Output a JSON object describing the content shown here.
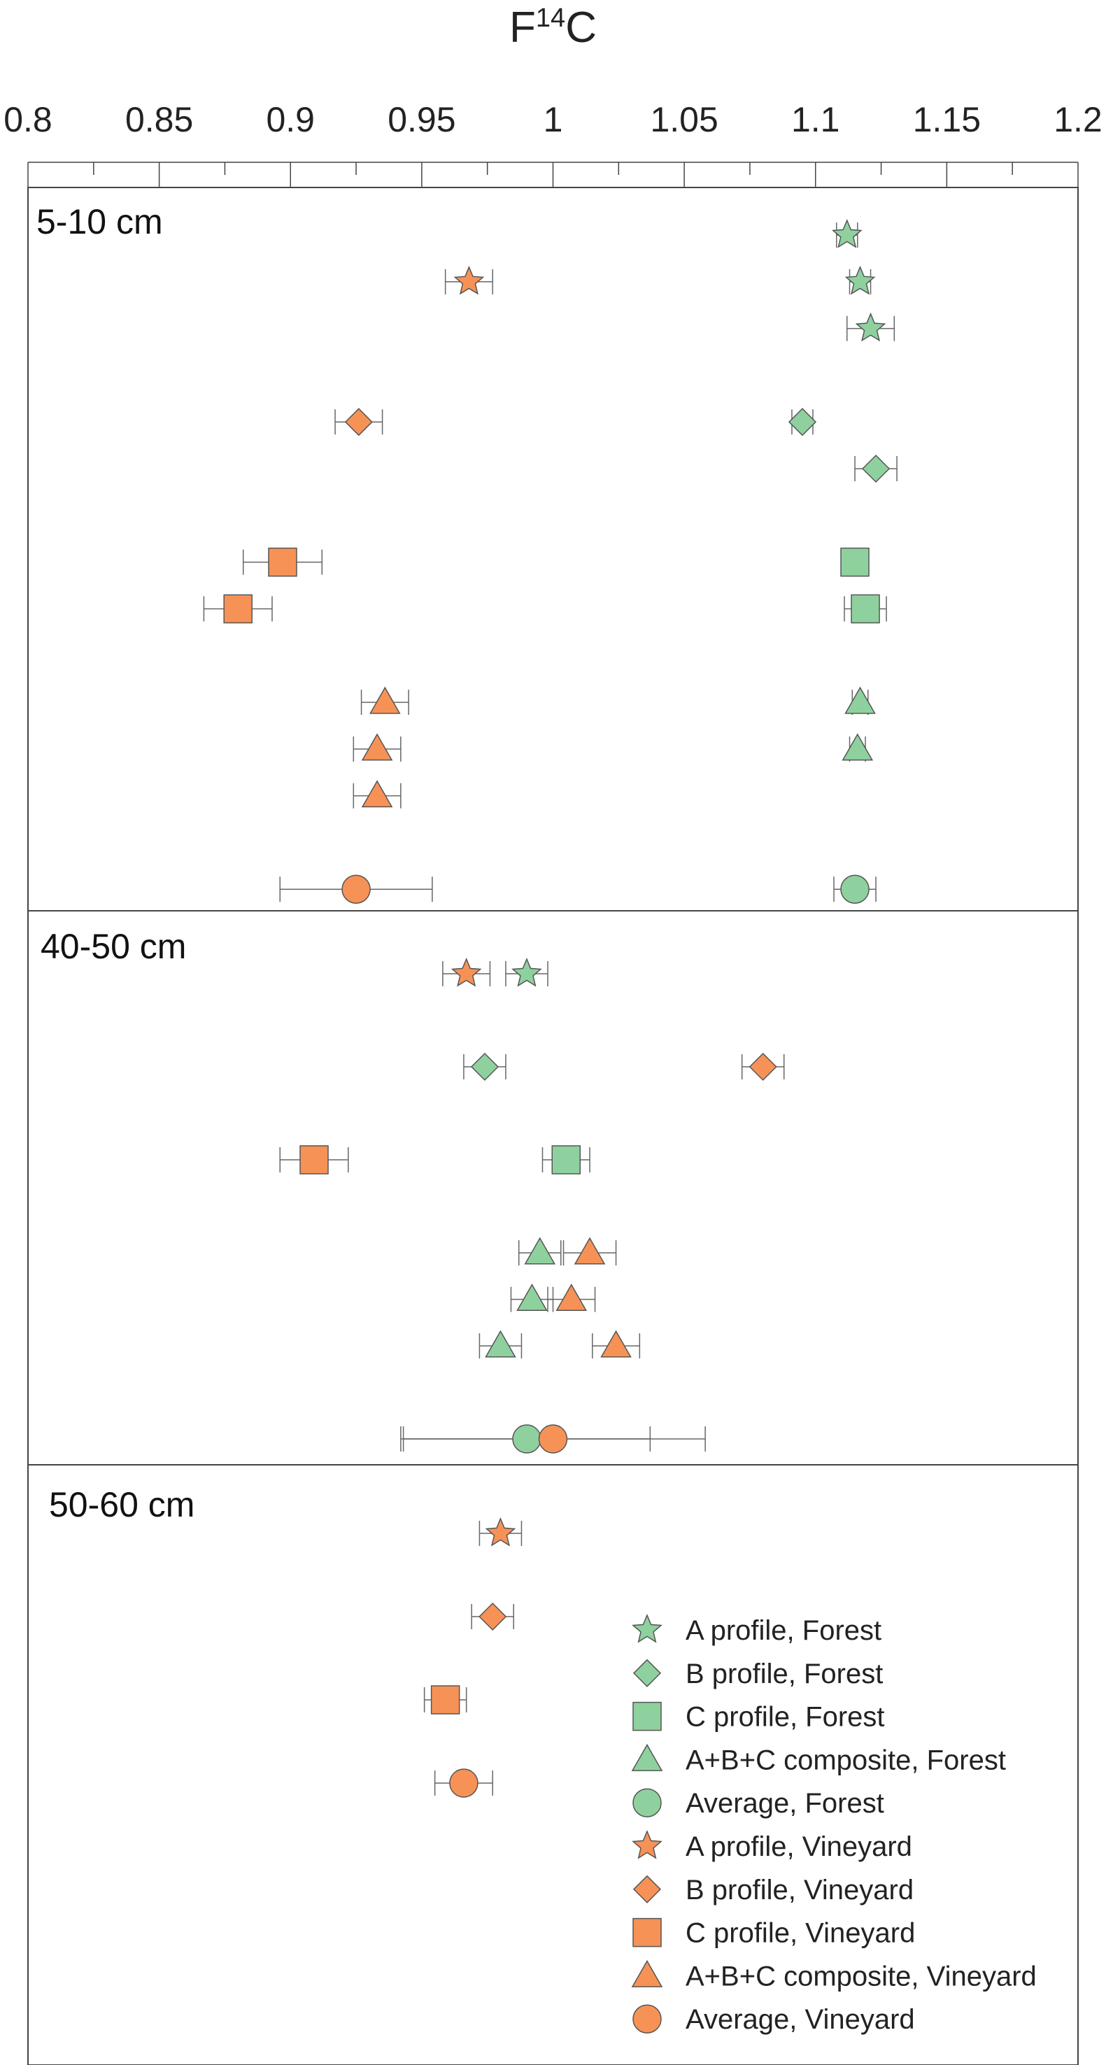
{
  "chart_data": {
    "type": "scatter",
    "title": "",
    "xlabel": "F",
    "xlabel_sup": "14",
    "xlabel_suffix": "C",
    "xlim": [
      0.8,
      1.2
    ],
    "xtick_values": [
      0.8,
      0.85,
      0.9,
      0.95,
      1,
      1.05,
      1.1,
      1.15,
      1.2
    ],
    "xtick_labels": [
      "0.8",
      "0.85",
      "0.9",
      "0.95",
      "1",
      "1.05",
      "1.1",
      "1.15",
      "1.2"
    ],
    "colors": {
      "forest": "#8fd19e",
      "vineyard": "#f79256",
      "stroke": "#555555",
      "axis": "#444444"
    },
    "legend": {
      "placement": "bottom-right of panel 50-60 cm",
      "entries": [
        {
          "label": "A profile, Forest",
          "shape": "star",
          "group": "forest"
        },
        {
          "label": "B profile, Forest",
          "shape": "diamond",
          "group": "forest"
        },
        {
          "label": "C profile, Forest",
          "shape": "square",
          "group": "forest"
        },
        {
          "label": "A+B+C composite, Forest",
          "shape": "triangle",
          "group": "forest"
        },
        {
          "label": "Average, Forest",
          "shape": "circle",
          "group": "forest"
        },
        {
          "label": "A profile, Vineyard",
          "shape": "star",
          "group": "vineyard"
        },
        {
          "label": "B profile, Vineyard",
          "shape": "diamond",
          "group": "vineyard"
        },
        {
          "label": "C profile, Vineyard",
          "shape": "square",
          "group": "vineyard"
        },
        {
          "label": "A+B+C composite, Vineyard",
          "shape": "triangle",
          "group": "vineyard"
        },
        {
          "label": "Average, Vineyard",
          "shape": "circle",
          "group": "vineyard"
        }
      ]
    },
    "panels": [
      {
        "label": "5-10 cm",
        "rows": 15,
        "points": [
          {
            "row": 1,
            "x": 1.112,
            "err": 0.004,
            "shape": "star",
            "group": "forest"
          },
          {
            "row": 2,
            "x": 0.968,
            "err": 0.009,
            "shape": "star",
            "group": "vineyard"
          },
          {
            "row": 2,
            "x": 1.117,
            "err": 0.004,
            "shape": "star",
            "group": "forest"
          },
          {
            "row": 3,
            "x": 1.121,
            "err": 0.009,
            "shape": "star",
            "group": "forest"
          },
          {
            "row": 5,
            "x": 0.926,
            "err": 0.009,
            "shape": "diamond",
            "group": "vineyard"
          },
          {
            "row": 5,
            "x": 1.095,
            "err": 0.004,
            "shape": "diamond",
            "group": "forest"
          },
          {
            "row": 6,
            "x": 1.123,
            "err": 0.008,
            "shape": "diamond",
            "group": "forest"
          },
          {
            "row": 8,
            "x": 0.897,
            "err": 0.015,
            "shape": "square",
            "group": "vineyard"
          },
          {
            "row": 8,
            "x": 1.115,
            "err": 0.003,
            "shape": "square",
            "group": "forest"
          },
          {
            "row": 9,
            "x": 0.88,
            "err": 0.013,
            "shape": "square",
            "group": "vineyard"
          },
          {
            "row": 9,
            "x": 1.119,
            "err": 0.008,
            "shape": "square",
            "group": "forest"
          },
          {
            "row": 11,
            "x": 0.936,
            "err": 0.009,
            "shape": "triangle",
            "group": "vineyard"
          },
          {
            "row": 11,
            "x": 1.117,
            "err": 0.003,
            "shape": "triangle",
            "group": "forest"
          },
          {
            "row": 12,
            "x": 0.933,
            "err": 0.009,
            "shape": "triangle",
            "group": "vineyard"
          },
          {
            "row": 12,
            "x": 1.116,
            "err": 0.003,
            "shape": "triangle",
            "group": "forest"
          },
          {
            "row": 13,
            "x": 0.933,
            "err": 0.009,
            "shape": "triangle",
            "group": "vineyard"
          },
          {
            "row": 15,
            "x": 0.925,
            "err": 0.029,
            "shape": "circle",
            "group": "vineyard"
          },
          {
            "row": 15,
            "x": 1.115,
            "err": 0.008,
            "shape": "circle",
            "group": "forest"
          }
        ]
      },
      {
        "label": "40-50 cm",
        "rows": 11,
        "points": [
          {
            "row": 1,
            "x": 0.967,
            "err": 0.009,
            "shape": "star",
            "group": "vineyard"
          },
          {
            "row": 1,
            "x": 0.99,
            "err": 0.008,
            "shape": "star",
            "group": "forest"
          },
          {
            "row": 3,
            "x": 0.974,
            "err": 0.008,
            "shape": "diamond",
            "group": "forest"
          },
          {
            "row": 3,
            "x": 1.08,
            "err": 0.008,
            "shape": "diamond",
            "group": "vineyard"
          },
          {
            "row": 5,
            "x": 0.909,
            "err": 0.013,
            "shape": "square",
            "group": "vineyard"
          },
          {
            "row": 5,
            "x": 1.005,
            "err": 0.009,
            "shape": "square",
            "group": "forest"
          },
          {
            "row": 7,
            "x": 0.995,
            "err": 0.008,
            "shape": "triangle",
            "group": "forest"
          },
          {
            "row": 7,
            "x": 1.014,
            "err": 0.01,
            "shape": "triangle",
            "group": "vineyard"
          },
          {
            "row": 8,
            "x": 0.992,
            "err": 0.008,
            "shape": "triangle",
            "group": "forest"
          },
          {
            "row": 8,
            "x": 1.007,
            "err": 0.009,
            "shape": "triangle",
            "group": "vineyard"
          },
          {
            "row": 9,
            "x": 0.98,
            "err": 0.008,
            "shape": "triangle",
            "group": "forest"
          },
          {
            "row": 9,
            "x": 1.024,
            "err": 0.009,
            "shape": "triangle",
            "group": "vineyard"
          },
          {
            "row": 11,
            "x": 0.99,
            "err": 0.047,
            "shape": "circle",
            "group": "forest"
          },
          {
            "row": 11,
            "x": 1.0,
            "err": 0.058,
            "shape": "circle",
            "group": "vineyard"
          }
        ]
      },
      {
        "label": "50-60 cm",
        "rows": 7,
        "points": [
          {
            "row": 1,
            "x": 0.98,
            "err": 0.008,
            "shape": "star",
            "group": "vineyard"
          },
          {
            "row": 3,
            "x": 0.977,
            "err": 0.008,
            "shape": "diamond",
            "group": "vineyard"
          },
          {
            "row": 5,
            "x": 0.959,
            "err": 0.008,
            "shape": "square",
            "group": "vineyard"
          },
          {
            "row": 7,
            "x": 0.966,
            "err": 0.011,
            "shape": "circle",
            "group": "vineyard"
          }
        ]
      }
    ]
  }
}
